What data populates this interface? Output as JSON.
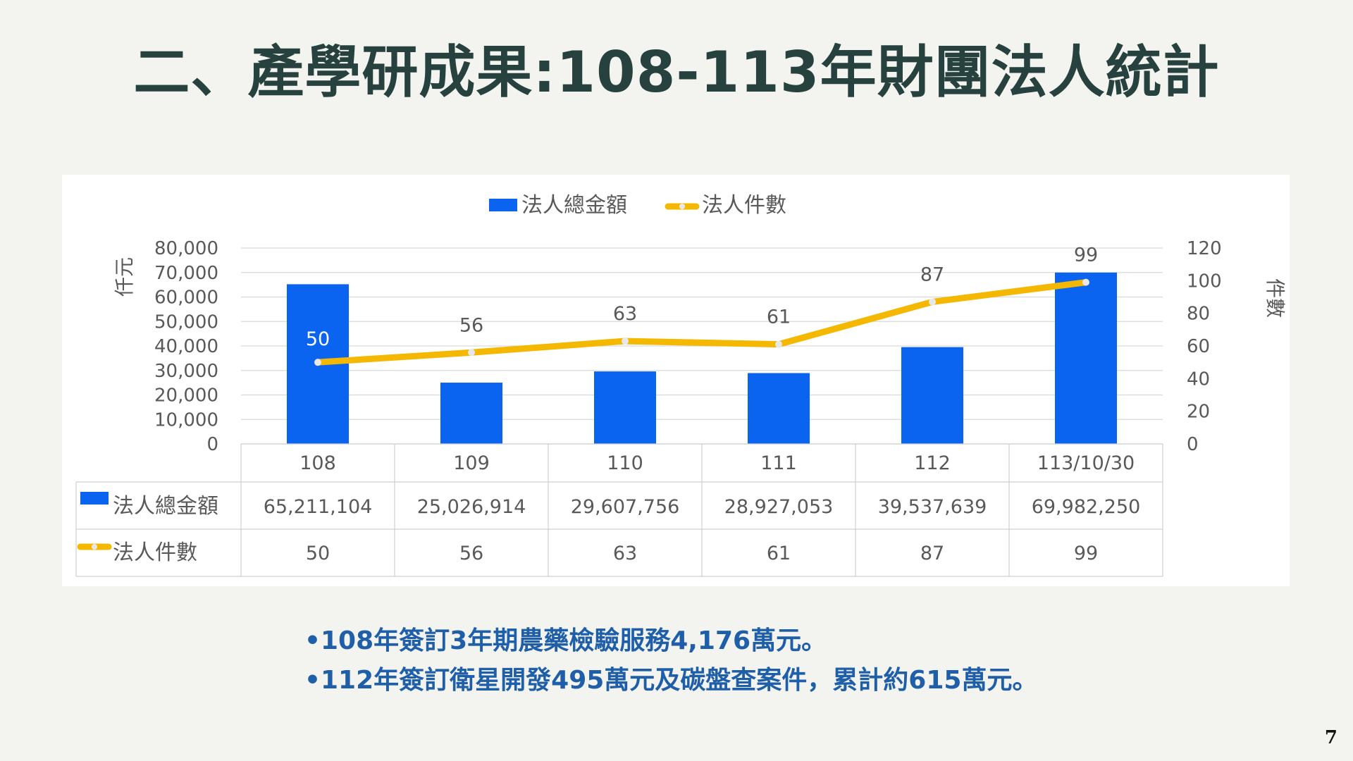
{
  "slide": {
    "title": "二、產學研成果:108-113年財團法人統計",
    "page_number": "7",
    "bullets": [
      "•108年簽訂3年期農藥檢驗服務4,176萬元。",
      "•112年簽訂衛星開發495萬元及碳盤查案件，累計約615萬元。"
    ]
  },
  "colors": {
    "bar": "#0a64f0",
    "line": "#f5b800",
    "title": "#27413e",
    "bullet_text": "#1f5ea8",
    "slide_bg": "#f3f4ef"
  },
  "chart_data": {
    "type": "bar",
    "categories": [
      "108",
      "109",
      "110",
      "111",
      "112",
      "113/10/30"
    ],
    "series": [
      {
        "name": "法人總金額",
        "type": "bar",
        "axis": "left",
        "values_table": [
          "65,211,104",
          "25,026,914",
          "29,607,756",
          "28,927,053",
          "39,537,639",
          "69,982,250"
        ],
        "values_thousand": [
          65211.104,
          25026.914,
          29607.756,
          28927.053,
          39537.639,
          69982.25
        ]
      },
      {
        "name": "法人件數",
        "type": "line",
        "axis": "right",
        "values": [
          50,
          56,
          63,
          61,
          87,
          99
        ]
      }
    ],
    "ylabel_left": "仟元",
    "ylabel_right": "件數",
    "ylim_left": [
      0,
      80000
    ],
    "ylim_right": [
      0,
      120
    ],
    "yticks_left": [
      "0",
      "10,000",
      "20,000",
      "30,000",
      "40,000",
      "50,000",
      "60,000",
      "70,000",
      "80,000"
    ],
    "yticks_right": [
      "0",
      "20",
      "40",
      "60",
      "80",
      "100",
      "120"
    ],
    "legend_position": "top",
    "grid": true,
    "data_table": true
  }
}
